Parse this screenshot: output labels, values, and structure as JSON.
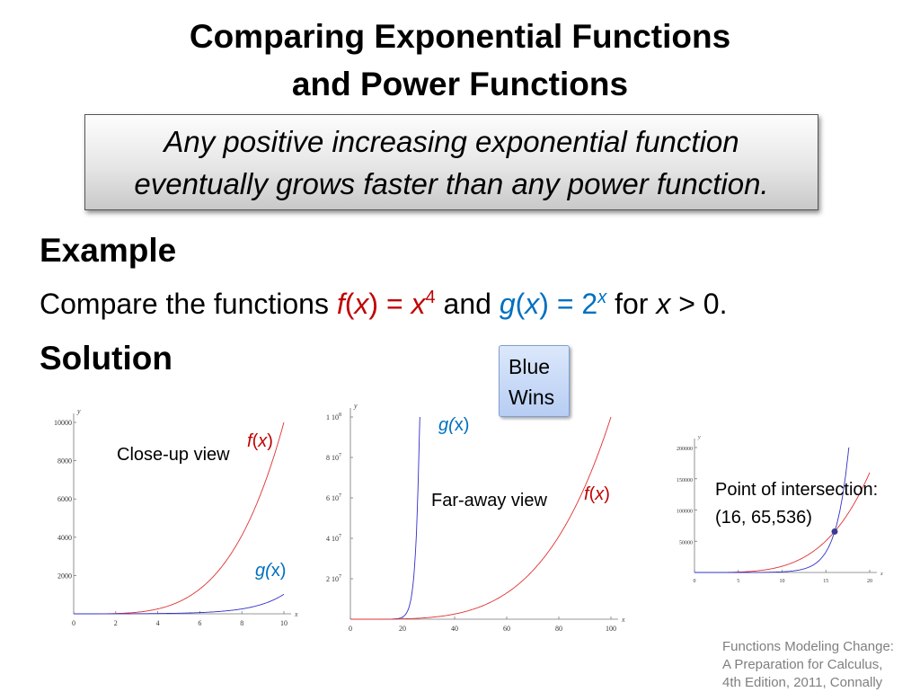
{
  "slide": {
    "title_line1": "Comparing Exponential Functions",
    "title_line2": "and Power Functions",
    "callout_line1": "Any positive increasing exponential function",
    "callout_line2": "eventually grows faster than any power function.",
    "example_heading": "Example",
    "statement": {
      "prefix": "Compare the functions ",
      "f": "f",
      "x": "x",
      "eq": ") = ",
      "exp4": "4",
      "and": " and ",
      "g": "g",
      "two": "2",
      "for": " for ",
      "tail": " > 0."
    },
    "solution_heading": "Solution",
    "blue_wins": [
      "Blue",
      "Wins"
    ],
    "labels": {
      "closeup": "Close-up view",
      "faraway": "Far-away view",
      "intersection_line1": "Point of intersection:",
      "intersection_line2": "(16, 65,536)"
    },
    "credit": [
      "Functions Modeling Change:",
      "A Preparation for Calculus,",
      "4th Edition, 2011, Connally"
    ],
    "colors": {
      "f_curve": "#e03030",
      "g_curve": "#3030c8",
      "f_text": "#c00000",
      "g_text": "#0070c0"
    }
  },
  "chart_data": [
    {
      "type": "line",
      "title": "Close-up view",
      "xlabel": "x",
      "ylabel": "y",
      "xlim": [
        0,
        10
      ],
      "ylim": [
        0,
        10000
      ],
      "xticks": [
        0,
        2,
        4,
        6,
        8,
        10
      ],
      "yticks": [
        2000,
        4000,
        6000,
        8000,
        10000
      ],
      "series": [
        {
          "name": "f(x)",
          "function": "x^4",
          "color": "#e03030"
        },
        {
          "name": "g(x)",
          "function": "2^x",
          "color": "#3030c8"
        }
      ]
    },
    {
      "type": "line",
      "title": "Far-away view",
      "xlabel": "x",
      "ylabel": "y",
      "xlim": [
        0,
        100
      ],
      "ylim": [
        0,
        100000000
      ],
      "xticks": [
        0,
        20,
        40,
        60,
        80,
        100
      ],
      "yticks": [
        20000000,
        40000000,
        60000000,
        80000000,
        100000000
      ],
      "ytick_labels": [
        [
          "2",
          "7"
        ],
        [
          "4",
          "7"
        ],
        [
          "6",
          "7"
        ],
        [
          "8",
          "7"
        ],
        [
          "1",
          "8"
        ]
      ],
      "series": [
        {
          "name": "g(x)",
          "function": "2^x",
          "color": "#3030c8"
        },
        {
          "name": "f(x)",
          "function": "x^4",
          "color": "#e03030"
        }
      ]
    },
    {
      "type": "line",
      "title": "Point of intersection",
      "xlabel": "x",
      "ylabel": "y",
      "xlim": [
        0,
        20
      ],
      "ylim": [
        0,
        200000
      ],
      "xticks": [
        0,
        5,
        10,
        15,
        20
      ],
      "yticks": [
        50000,
        100000,
        150000,
        200000
      ],
      "series": [
        {
          "function": "x^4",
          "color": "#e03030"
        },
        {
          "function": "2^x",
          "color": "#3030c8"
        }
      ],
      "intersection": {
        "x": 16,
        "y": 65536
      }
    }
  ]
}
